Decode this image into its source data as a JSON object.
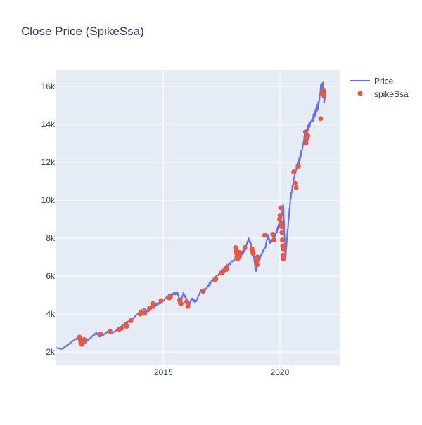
{
  "chart_data": {
    "type": "line",
    "title": "Close Price (SpikeSsa)",
    "xlabel": "",
    "ylabel": "",
    "xlim": [
      2010.4,
      2022.6
    ],
    "ylim": [
      1300,
      16850
    ],
    "grid": true,
    "legend_placement": "top-right",
    "x_ticks": [
      {
        "value": 2015,
        "label": "2015"
      },
      {
        "value": 2020,
        "label": "2020"
      }
    ],
    "y_ticks": [
      {
        "value": 2000,
        "label": "2k"
      },
      {
        "value": 4000,
        "label": "4k"
      },
      {
        "value": 6000,
        "label": "6k"
      },
      {
        "value": 8000,
        "label": "8k"
      },
      {
        "value": 10000,
        "label": "10k"
      },
      {
        "value": 12000,
        "label": "12k"
      },
      {
        "value": 14000,
        "label": "14k"
      },
      {
        "value": 16000,
        "label": "16k"
      }
    ],
    "colors": {
      "background": "#E5ECF6",
      "price": "#636efa",
      "spike": "#EF553B",
      "text": "#2a3f5f"
    },
    "series": [
      {
        "name": "Price",
        "mode": "lines",
        "x": [
          2010.4,
          2010.64,
          2011.0,
          2011.3,
          2011.45,
          2011.58,
          2011.76,
          2011.97,
          2012.12,
          2012.27,
          2012.42,
          2012.6,
          2012.82,
          2013.06,
          2013.27,
          2013.48,
          2013.73,
          2013.94,
          2014.18,
          2014.33,
          2014.58,
          2014.79,
          2014.94,
          2015.18,
          2015.48,
          2015.61,
          2015.73,
          2015.85,
          2016.0,
          2016.09,
          2016.21,
          2016.39,
          2016.6,
          2016.82,
          2017.06,
          2017.36,
          2017.67,
          2017.97,
          2018.15,
          2018.33,
          2018.52,
          2018.64,
          2018.73,
          2018.88,
          2018.97,
          2019.06,
          2019.24,
          2019.39,
          2019.48,
          2019.58,
          2019.73,
          2019.85,
          2020.0,
          2020.09,
          2020.15,
          2020.21,
          2020.24,
          2020.33,
          2020.45,
          2020.58,
          2020.7,
          2020.82,
          2020.94,
          2021.06,
          2021.18,
          2021.3,
          2021.42,
          2021.55,
          2021.67,
          2021.76,
          2021.85,
          2021.91,
          2021.97
        ],
        "y": [
          2222,
          2148,
          2480,
          2740,
          2780,
          2410,
          2630,
          2850,
          3000,
          2815,
          2890,
          3070,
          3000,
          3220,
          3410,
          3590,
          3810,
          4070,
          4260,
          4110,
          4440,
          4560,
          4630,
          4930,
          5070,
          5110,
          4560,
          5070,
          4810,
          4410,
          4810,
          4630,
          5220,
          5300,
          5740,
          6110,
          6480,
          6780,
          7000,
          7150,
          7410,
          7960,
          7780,
          7040,
          6220,
          6780,
          7220,
          7590,
          8150,
          7780,
          7960,
          8330,
          8780,
          9260,
          9810,
          7780,
          6850,
          8330,
          10000,
          11000,
          11670,
          12040,
          12590,
          13330,
          13700,
          14070,
          14330,
          14700,
          15070,
          15930,
          16040,
          15190,
          15740
        ]
      },
      {
        "name": "spikeSsa",
        "mode": "markers",
        "x": [
          2011.4,
          2011.42,
          2011.44,
          2011.46,
          2011.5,
          2011.6,
          2012.3,
          2012.7,
          2013.1,
          2013.2,
          2013.4,
          2013.42,
          2013.6,
          2014.0,
          2014.05,
          2014.2,
          2014.4,
          2014.55,
          2014.57,
          2014.9,
          2015.25,
          2015.3,
          2015.7,
          2015.72,
          2015.76,
          2016.0,
          2016.05,
          2016.7,
          2017.2,
          2017.25,
          2017.5,
          2017.55,
          2017.7,
          2017.72,
          2018.1,
          2018.12,
          2018.14,
          2018.16,
          2018.18,
          2018.25,
          2018.27,
          2018.5,
          2018.8,
          2018.82,
          2018.85,
          2019.0,
          2019.02,
          2019.04,
          2019.35,
          2019.7,
          2019.75,
          2019.99,
          2020.01,
          2020.03,
          2020.05,
          2020.07,
          2020.09,
          2020.1,
          2020.12,
          2020.13,
          2020.14,
          2020.15,
          2020.6,
          2020.65,
          2020.7,
          2020.8,
          2021.1,
          2021.12,
          2021.14,
          2021.2,
          2021.75,
          2021.82,
          2021.85,
          2021.88,
          2021.9
        ],
        "y": [
          2780,
          2700,
          2600,
          2450,
          2400,
          2650,
          2950,
          3100,
          3200,
          3250,
          3450,
          3350,
          3650,
          4000,
          4100,
          4050,
          4300,
          4550,
          4400,
          4700,
          4850,
          4900,
          4750,
          4600,
          4550,
          4650,
          4400,
          5200,
          5800,
          5850,
          6150,
          6250,
          6350,
          6450,
          7500,
          7350,
          7200,
          7000,
          6900,
          7250,
          7050,
          7500,
          7450,
          7350,
          7200,
          6800,
          6600,
          7000,
          8150,
          8200,
          7900,
          9000,
          9200,
          9600,
          8800,
          8600,
          8300,
          7900,
          7600,
          7100,
          6900,
          7400,
          11500,
          10900,
          10650,
          11800,
          13600,
          13000,
          13200,
          13400,
          14300,
          15700,
          15600,
          15800,
          15500
        ]
      }
    ]
  }
}
